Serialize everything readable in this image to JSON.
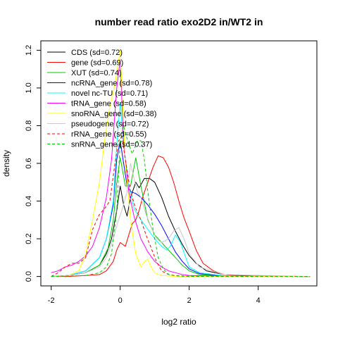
{
  "chart_data": {
    "type": "line",
    "title": "number read ratio exo2D2 in/WT2 in",
    "xlabel": "log2 ratio",
    "ylabel": "density",
    "xlim": [
      -2.3,
      5.7
    ],
    "ylim": [
      -0.05,
      1.25
    ],
    "x_ticks": [
      "-2",
      "0",
      "2",
      "4"
    ],
    "y_ticks": [
      "0.0",
      "0.2",
      "0.4",
      "0.6",
      "0.8",
      "1.0",
      "1.2"
    ],
    "legend_position": "top-left",
    "grid": false,
    "series": [
      {
        "name": "CDS (sd=0.72)",
        "color": "#000000",
        "dash": "solid",
        "x": [
          -2.0,
          -1.5,
          -1.0,
          -0.6,
          -0.4,
          -0.25,
          -0.1,
          0.0,
          0.1,
          0.2,
          0.3,
          0.45,
          0.55,
          0.7,
          0.85,
          1.0,
          1.2,
          1.4,
          1.6,
          1.8,
          2.0,
          2.2,
          2.5,
          3.0,
          4.0,
          5.5
        ],
        "y": [
          0.0,
          0.005,
          0.02,
          0.06,
          0.12,
          0.2,
          0.35,
          0.48,
          0.38,
          0.32,
          0.42,
          0.5,
          0.47,
          0.52,
          0.52,
          0.5,
          0.42,
          0.32,
          0.24,
          0.17,
          0.11,
          0.07,
          0.03,
          0.01,
          0.002,
          0.0
        ]
      },
      {
        "name": "gene (sd=0.69)",
        "color": "#ff0000",
        "dash": "solid",
        "x": [
          -2.0,
          -1.5,
          -1.0,
          -0.6,
          -0.4,
          -0.2,
          -0.1,
          0.0,
          0.15,
          0.25,
          0.35,
          0.45,
          0.55,
          0.65,
          0.8,
          0.95,
          1.1,
          1.25,
          1.4,
          1.55,
          1.7,
          1.85,
          2.0,
          2.2,
          2.4,
          2.7,
          3.0,
          3.5,
          4.0,
          5.5
        ],
        "y": [
          0.0,
          0.0,
          0.005,
          0.01,
          0.03,
          0.08,
          0.14,
          0.18,
          0.16,
          0.22,
          0.28,
          0.3,
          0.35,
          0.42,
          0.5,
          0.58,
          0.64,
          0.63,
          0.58,
          0.5,
          0.4,
          0.31,
          0.24,
          0.14,
          0.07,
          0.03,
          0.01,
          0.003,
          0.001,
          0.0
        ]
      },
      {
        "name": "XUT (sd=0.74)",
        "color": "#00cc00",
        "dash": "solid",
        "x": [
          -2.0,
          -1.5,
          -1.0,
          -0.6,
          -0.35,
          -0.2,
          -0.1,
          0.0,
          0.15,
          0.3,
          0.45,
          0.6,
          0.8,
          1.0,
          1.2,
          1.4,
          1.6,
          1.8,
          2.0,
          2.3,
          3.0,
          5.5
        ],
        "y": [
          0.0,
          0.005,
          0.02,
          0.06,
          0.15,
          0.3,
          0.5,
          0.63,
          0.48,
          0.48,
          0.63,
          0.48,
          0.3,
          0.22,
          0.18,
          0.14,
          0.1,
          0.06,
          0.03,
          0.01,
          0.002,
          0.0
        ]
      },
      {
        "name": "ncRNA_gene (sd=0.78)",
        "color": "#0000ff",
        "dash": "solid",
        "x": [
          -2.0,
          -1.5,
          -1.0,
          -0.6,
          -0.4,
          -0.2,
          -0.1,
          0.0,
          0.1,
          0.2,
          0.3,
          0.45,
          0.6,
          0.8,
          1.0,
          1.2,
          1.4,
          1.6,
          1.8,
          2.0,
          2.3,
          3.0,
          5.5
        ],
        "y": [
          0.0,
          0.005,
          0.03,
          0.1,
          0.2,
          0.38,
          0.62,
          0.72,
          0.6,
          0.48,
          0.45,
          0.44,
          0.42,
          0.38,
          0.33,
          0.27,
          0.2,
          0.13,
          0.08,
          0.04,
          0.015,
          0.003,
          0.0
        ]
      },
      {
        "name": "novel nc-TU (sd=0.71)",
        "color": "#00ffff",
        "dash": "solid",
        "x": [
          -2.0,
          -1.5,
          -1.0,
          -0.6,
          -0.4,
          -0.2,
          -0.1,
          0.0,
          0.1,
          0.25,
          0.4,
          0.6,
          0.8,
          1.0,
          1.2,
          1.35,
          1.45,
          1.6,
          1.75,
          1.9,
          2.0,
          2.3,
          3.0,
          5.5
        ],
        "y": [
          0.0,
          0.005,
          0.03,
          0.1,
          0.2,
          0.4,
          0.7,
          0.92,
          0.7,
          0.48,
          0.36,
          0.3,
          0.25,
          0.2,
          0.16,
          0.14,
          0.16,
          0.22,
          0.18,
          0.1,
          0.05,
          0.02,
          0.003,
          0.0
        ]
      },
      {
        "name": "tRNA_gene (sd=0.58)",
        "color": "#ff00ff",
        "dash": "solid",
        "x": [
          -2.0,
          -1.8,
          -1.6,
          -1.4,
          -1.2,
          -1.0,
          -0.8,
          -0.6,
          -0.4,
          -0.25,
          -0.1,
          0.0,
          0.1,
          0.25,
          0.4,
          0.6,
          0.8,
          1.0,
          1.2,
          1.4,
          1.6,
          1.8,
          2.0,
          3.0,
          5.5
        ],
        "y": [
          0.02,
          0.03,
          0.05,
          0.06,
          0.08,
          0.11,
          0.16,
          0.26,
          0.42,
          0.62,
          1.0,
          1.15,
          0.7,
          0.45,
          0.32,
          0.2,
          0.13,
          0.08,
          0.05,
          0.03,
          0.02,
          0.01,
          0.005,
          0.001,
          0.0
        ]
      },
      {
        "name": "snoRNA_gene (sd=0.38)",
        "color": "#ffff00",
        "dash": "solid",
        "x": [
          -2.0,
          -1.5,
          -1.2,
          -1.0,
          -0.8,
          -0.6,
          -0.45,
          -0.3,
          -0.15,
          0.0,
          0.05,
          0.15,
          0.3,
          0.45,
          0.6,
          0.7,
          0.8,
          0.9,
          1.0,
          1.2,
          1.5,
          2.0,
          5.5
        ],
        "y": [
          0.0,
          0.005,
          0.03,
          0.12,
          0.3,
          0.5,
          0.72,
          0.9,
          1.02,
          1.2,
          1.0,
          0.6,
          0.3,
          0.12,
          0.05,
          0.08,
          0.09,
          0.05,
          0.02,
          0.005,
          0.001,
          0.0,
          0.0
        ]
      },
      {
        "name": "pseudogene (sd=0.72)",
        "color": "#c8c8c8",
        "dash": "solid",
        "x": [
          -2.0,
          -1.5,
          -1.0,
          -0.6,
          -0.4,
          -0.2,
          -0.05,
          0.05,
          0.2,
          0.3,
          0.4,
          0.5,
          0.6,
          0.75,
          0.9,
          1.05,
          1.2,
          1.4,
          1.55,
          1.7,
          1.85,
          2.0,
          2.3,
          3.0,
          5.5
        ],
        "y": [
          0.0,
          0.005,
          0.02,
          0.05,
          0.1,
          0.2,
          0.3,
          0.35,
          0.45,
          0.6,
          0.52,
          0.45,
          0.42,
          0.33,
          0.26,
          0.2,
          0.18,
          0.2,
          0.24,
          0.26,
          0.2,
          0.12,
          0.05,
          0.01,
          0.0
        ]
      },
      {
        "name": "rRNA_gene (sd=0.55)",
        "color": "#ff0000",
        "dash": "dashed",
        "x": [
          -2.0,
          -1.8,
          -1.6,
          -1.4,
          -1.2,
          -1.0,
          -0.8,
          -0.6,
          -0.45,
          -0.3,
          -0.15,
          -0.05,
          0.05,
          0.15,
          0.3,
          0.45,
          0.6,
          0.75,
          0.9,
          1.05,
          1.2,
          1.4,
          1.6,
          2.0,
          5.5
        ],
        "y": [
          0.0,
          0.02,
          0.05,
          0.07,
          0.07,
          0.1,
          0.25,
          0.33,
          0.36,
          0.4,
          0.6,
          0.72,
          0.74,
          0.62,
          0.45,
          0.36,
          0.3,
          0.22,
          0.15,
          0.08,
          0.03,
          0.01,
          0.005,
          0.001,
          0.0
        ]
      },
      {
        "name": "snRNA_gene (sd=0.37)",
        "color": "#00cc00",
        "dash": "dashed",
        "x": [
          -2.0,
          -1.0,
          -0.6,
          -0.4,
          -0.25,
          -0.1,
          0.0,
          0.1,
          0.2,
          0.35,
          0.5,
          0.6,
          0.7,
          0.8,
          0.95,
          1.1,
          1.25,
          1.4,
          1.6,
          2.0,
          5.5
        ],
        "y": [
          0.0,
          0.005,
          0.02,
          0.05,
          0.12,
          0.35,
          0.72,
          0.8,
          0.73,
          0.65,
          0.72,
          0.72,
          0.62,
          0.45,
          0.25,
          0.1,
          0.04,
          0.01,
          0.003,
          0.0,
          0.0
        ]
      }
    ]
  }
}
